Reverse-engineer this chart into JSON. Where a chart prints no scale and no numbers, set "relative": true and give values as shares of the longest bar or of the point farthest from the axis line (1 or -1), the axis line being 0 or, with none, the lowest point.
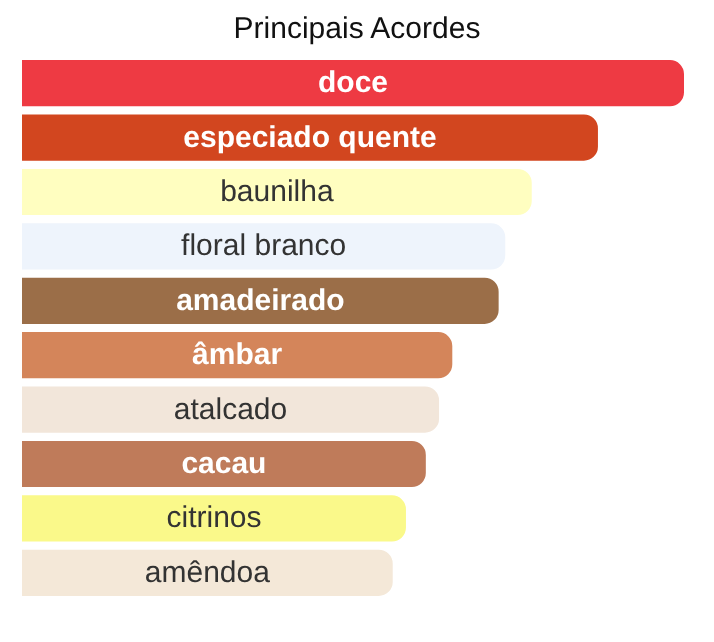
{
  "chart_data": {
    "type": "bar",
    "title": "Principais Acordes",
    "orientation": "horizontal",
    "relative": true,
    "categories": [
      "doce",
      "especiado quente",
      "baunilha",
      "floral branco",
      "amadeirado",
      "âmbar",
      "atalcado",
      "cacau",
      "citrinos",
      "amêndoa"
    ],
    "values": [
      1,
      0.87,
      0.77,
      0.73,
      0.72,
      0.65,
      0.63,
      0.61,
      0.58,
      0.56
    ],
    "colors": [
      "#ee3a43",
      "#d2461f",
      "#fffec0",
      "#eef4fc",
      "#9b6e48",
      "#d4855a",
      "#f2e6da",
      "#bf7b5a",
      "#faf98a",
      "#f4e8d8"
    ]
  }
}
